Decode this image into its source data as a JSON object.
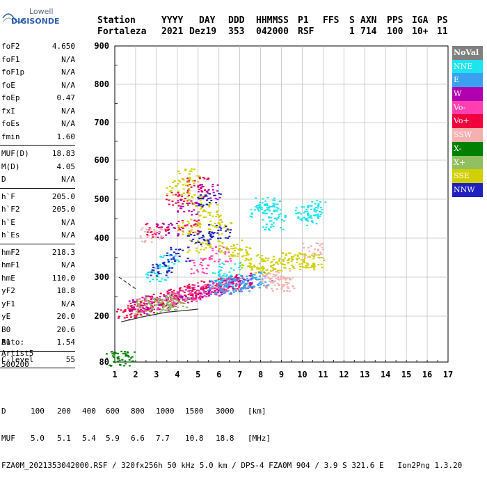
{
  "logo": {
    "line1": "Lowell",
    "line2": "DIGISONDE"
  },
  "header": {
    "labels": [
      "Station",
      "YYYY",
      "DAY",
      "DDD",
      "HHMMSS",
      "P1",
      "FFS",
      "S",
      "AXN",
      "PPS",
      "IGA",
      "PS"
    ],
    "values": [
      "Fortaleza",
      "2021",
      "Dez19",
      "353",
      "042000",
      "RSF",
      "",
      "1",
      "714",
      "100",
      "10+",
      "11"
    ]
  },
  "params": [
    {
      "group": [
        {
          "name": "foF2",
          "value": "4.650"
        },
        {
          "name": "foF1",
          "value": "N/A"
        },
        {
          "name": "foF1p",
          "value": "N/A"
        },
        {
          "name": "foE",
          "value": "N/A"
        },
        {
          "name": "foEp",
          "value": "0.47"
        },
        {
          "name": "fxI",
          "value": "N/A"
        },
        {
          "name": "foEs",
          "value": "N/A"
        },
        {
          "name": "fmin",
          "value": "1.60"
        }
      ]
    },
    {
      "group": [
        {
          "name": "MUF(D)",
          "value": "18.83"
        },
        {
          "name": "M(D)",
          "value": "4.05"
        },
        {
          "name": "D",
          "value": "N/A"
        }
      ]
    },
    {
      "group": [
        {
          "name": "h`F",
          "value": "205.0"
        },
        {
          "name": "h`F2",
          "value": "205.0"
        },
        {
          "name": "h`E",
          "value": "N/A"
        },
        {
          "name": "h`Es",
          "value": "N/A"
        }
      ]
    },
    {
      "group": [
        {
          "name": "hmF2",
          "value": "218.3"
        },
        {
          "name": "hmF1",
          "value": "N/A"
        },
        {
          "name": "hmE",
          "value": "110.0"
        },
        {
          "name": "yF2",
          "value": "18.8"
        },
        {
          "name": "yF1",
          "value": "N/A"
        },
        {
          "name": "yE",
          "value": "20.0"
        },
        {
          "name": "B0",
          "value": "20.6"
        },
        {
          "name": "B1",
          "value": "1.54"
        }
      ]
    },
    {
      "group": [
        {
          "name": "C-level",
          "value": "55"
        }
      ]
    }
  ],
  "auto": [
    "Auto:",
    "Artist5",
    "500200"
  ],
  "legend": [
    {
      "label": "NoVal",
      "color": "#808080"
    },
    {
      "label": "NNE",
      "color": "#1ee3f0"
    },
    {
      "label": "E",
      "color": "#3aa0f0"
    },
    {
      "label": "W",
      "color": "#b000b0"
    },
    {
      "label": "Vo-",
      "color": "#ff3fb0"
    },
    {
      "label": "Vo+",
      "color": "#f0003c"
    },
    {
      "label": "SSW",
      "color": "#f5b0b0"
    },
    {
      "label": "X-",
      "color": "#008000"
    },
    {
      "label": "X+",
      "color": "#90c060"
    },
    {
      "label": "SSE",
      "color": "#d0d000"
    },
    {
      "label": "NNW",
      "color": "#2020c0"
    }
  ],
  "footer": {
    "d_label": "D",
    "d_values": [
      "100",
      "200",
      "400",
      "600",
      "800",
      "1000",
      "1500",
      "3000",
      "[km]"
    ],
    "muf_label": "MUF",
    "muf_values": [
      "5.0",
      "5.1",
      "5.4",
      "5.9",
      "6.6",
      "7.7",
      "10.8",
      "18.8",
      "[MHz]"
    ],
    "info": "FZA0M_2021353042000.RSF / 320fx256h 50 kHz 5.0 km / DPS-4 FZA0M 904 / 3.9 S 321.6 E   Ion2Png 1.3.20"
  },
  "chart_data": {
    "type": "scatter",
    "xlim": [
      1,
      17
    ],
    "ylim": [
      80,
      900
    ],
    "xticks": [
      "1",
      "2",
      "3",
      "4",
      "5",
      "6",
      "7",
      "8",
      "9",
      "10",
      "11",
      "12",
      "13",
      "14",
      "15",
      "16",
      "17"
    ],
    "yticks": [
      "80",
      "200",
      "300",
      "400",
      "500",
      "600",
      "700",
      "800",
      "900"
    ],
    "grid": true,
    "clusters": [
      {
        "series": "Vo+",
        "points": [
          [
            1.5,
            212
          ],
          [
            2.0,
            220
          ],
          [
            2.5,
            230
          ],
          [
            3.0,
            238
          ],
          [
            3.5,
            245
          ],
          [
            4.0,
            252
          ],
          [
            4.5,
            258
          ],
          [
            5.0,
            265
          ],
          [
            5.5,
            272
          ],
          [
            6.0,
            278
          ],
          [
            6.5,
            285
          ],
          [
            7.0,
            292
          ],
          [
            4.5,
            430
          ],
          [
            4.0,
            500
          ],
          [
            5.0,
            540
          ],
          [
            3.0,
            420
          ]
        ]
      },
      {
        "series": "W",
        "points": [
          [
            2.2,
            225
          ],
          [
            3.0,
            235
          ],
          [
            4.0,
            250
          ],
          [
            5.0,
            262
          ],
          [
            6.0,
            276
          ],
          [
            7.0,
            288
          ],
          [
            3.5,
            420
          ],
          [
            4.5,
            480
          ],
          [
            5.5,
            520
          ]
        ]
      },
      {
        "series": "Vo-",
        "points": [
          [
            2.5,
            232
          ],
          [
            3.5,
            242
          ],
          [
            4.5,
            256
          ],
          [
            5.5,
            268
          ],
          [
            6.5,
            280
          ],
          [
            5.0,
            330
          ],
          [
            6.0,
            360
          ]
        ]
      },
      {
        "series": "SSE",
        "points": [
          [
            4.0,
            530
          ],
          [
            4.5,
            560
          ],
          [
            5.0,
            500
          ],
          [
            5.5,
            470
          ],
          [
            6.0,
            430
          ],
          [
            6.5,
            380
          ],
          [
            7.0,
            360
          ],
          [
            7.5,
            340
          ],
          [
            8.0,
            330
          ],
          [
            8.5,
            335
          ],
          [
            9.0,
            340
          ],
          [
            9.5,
            345
          ],
          [
            10.0,
            340
          ],
          [
            10.5,
            345
          ],
          [
            4.5,
            430
          ],
          [
            5.0,
            380
          ]
        ]
      },
      {
        "series": "NNE",
        "points": [
          [
            8.0,
            470
          ],
          [
            8.2,
            490
          ],
          [
            8.4,
            480
          ],
          [
            8.6,
            440
          ],
          [
            10.2,
            470
          ],
          [
            10.5,
            480
          ],
          [
            10.3,
            450
          ],
          [
            3.0,
            310
          ],
          [
            3.5,
            340
          ],
          [
            6.0,
            300
          ],
          [
            6.5,
            320
          ]
        ]
      },
      {
        "series": "E",
        "points": [
          [
            7.0,
            285
          ],
          [
            7.5,
            290
          ],
          [
            8.0,
            295
          ],
          [
            6.5,
            280
          ],
          [
            6.0,
            275
          ]
        ]
      },
      {
        "series": "SSW",
        "points": [
          [
            8.5,
            290
          ],
          [
            9.0,
            285
          ],
          [
            8.8,
            300
          ],
          [
            2.7,
            410
          ],
          [
            10.5,
            370
          ]
        ]
      },
      {
        "series": "NNW",
        "points": [
          [
            5.0,
            400
          ],
          [
            6.0,
            420
          ],
          [
            4.0,
            360
          ],
          [
            3.2,
            320
          ],
          [
            5.5,
            500
          ]
        ]
      },
      {
        "series": "X+",
        "points": [
          [
            2.5,
            222
          ],
          [
            3.0,
            230
          ],
          [
            3.5,
            236
          ],
          [
            4.0,
            240
          ]
        ]
      },
      {
        "series": "X-",
        "points": [
          [
            1.1,
            90
          ],
          [
            1.4,
            92
          ]
        ]
      }
    ],
    "trace_lines": [
      {
        "points": [
          [
            1.3,
            185
          ],
          [
            2.5,
            200
          ],
          [
            3.5,
            210
          ],
          [
            4.5,
            215
          ],
          [
            5.0,
            218
          ]
        ]
      },
      {
        "points": [
          [
            1.2,
            300
          ],
          [
            1.6,
            285
          ],
          [
            2.0,
            270
          ]
        ],
        "dashed": true
      }
    ]
  }
}
